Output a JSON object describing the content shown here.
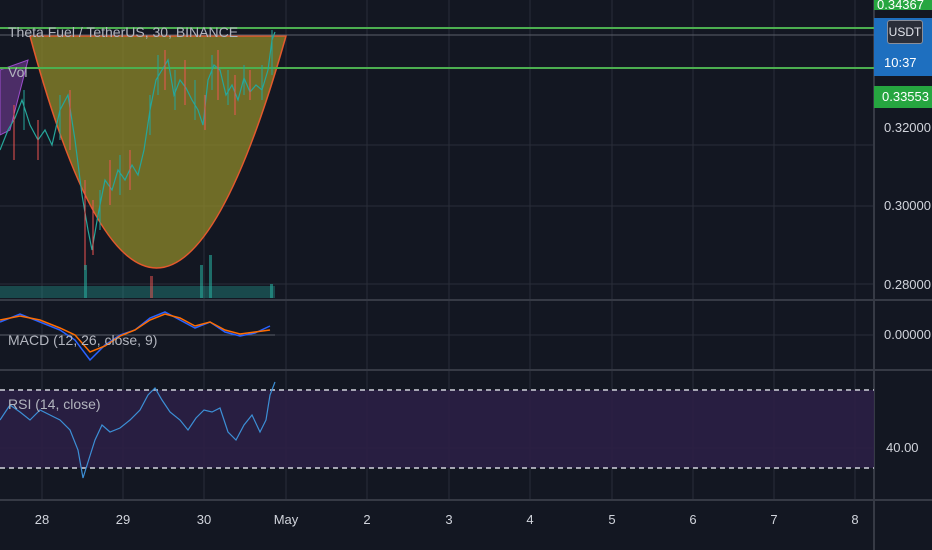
{
  "symbol_title": "Theta Fuel / TetherUS, 30, BINANCE",
  "volume_label": "Vol",
  "macd_label": "MACD (12, 26, close, 9)",
  "rsi_label": "RSI (14, close)",
  "currency": "USDT",
  "badges": {
    "top_price": "0.34367",
    "countdown": "10:37",
    "mid_price": "0.33553"
  },
  "price_ticks": [
    "0.32000",
    "0.30000",
    "0.28000"
  ],
  "macd_tick": "0.00000",
  "rsi_tick": "40.00",
  "date_ticks": [
    "28",
    "29",
    "30",
    "May",
    "2",
    "3",
    "4",
    "5",
    "6",
    "7",
    "8"
  ],
  "colors": {
    "background": "#131722",
    "grid": "#2a2e39",
    "horizontal_level": "#4caf50",
    "cup_fill": "#8f8a2a",
    "cup_stroke": "#e4592d",
    "rsi_band": "#2b1f45",
    "rsi_line": "#3c8fd6",
    "macd_line": "#2962ff",
    "signal_line": "#ff6d00",
    "candle_up": "#26a69a",
    "candle_down": "#ef5350"
  }
}
